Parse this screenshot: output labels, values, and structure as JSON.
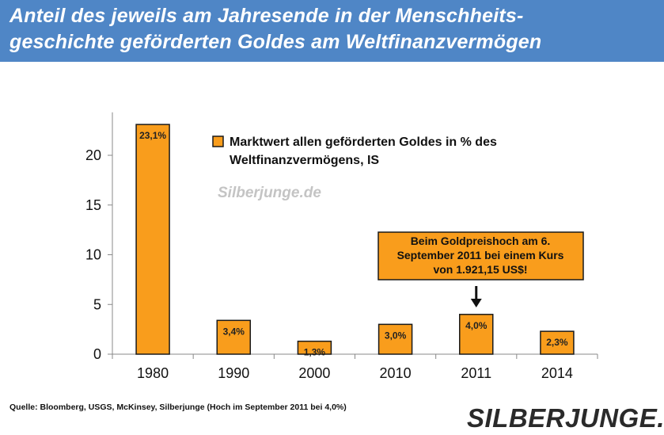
{
  "header": {
    "title_line1": "Anteil des jeweils am Jahresende in der Menschheits-",
    "title_line2": "geschichte geförderten Goldes am Weltfinanzvermögen"
  },
  "chart_data": {
    "type": "bar",
    "categories": [
      "1980",
      "1990",
      "2000",
      "2010",
      "2011",
      "2014"
    ],
    "series": [
      {
        "name": "Marktwert allen geförderten Goldes in % des Weltfinanzvermögens, IS",
        "values": [
          23.1,
          3.4,
          1.3,
          3.0,
          4.0,
          2.3
        ],
        "data_labels": [
          "23,1%",
          "3,4%",
          "1,3%",
          "3,0%",
          "4,0%",
          "2,3%"
        ]
      }
    ],
    "yticks": [
      0,
      5,
      10,
      15,
      20
    ],
    "ylim": [
      0,
      24
    ],
    "legend": {
      "line1": "Marktwert allen geförderten Goldes in % des",
      "line2": "Weltfinanzvermögens, IS",
      "position": "top-right"
    },
    "annotation": {
      "lines": [
        "Beim Goldpreishoch am 6.",
        "September 2011 bei einem Kurs",
        "von 1.921,15 US$!"
      ],
      "target_category": "2011"
    },
    "watermark": "Silberjunge.de",
    "bar_color": "#f99d1c",
    "bar_stroke": "#1a1a1a",
    "grid": false
  },
  "footer": {
    "source": "Quelle: Bloomberg, USGS, McKinsey,  Silberjunge (Hoch im September 2011 bei 4,0%)",
    "logo": "SILBERJUNGE."
  },
  "colors": {
    "header_bg": "#4f86c6",
    "header_text": "#ffffff",
    "bar_fill": "#f99d1c",
    "callout_fill": "#f99d1c"
  }
}
